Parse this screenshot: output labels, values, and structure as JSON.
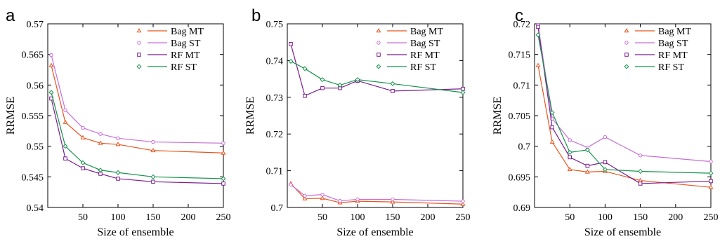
{
  "chart_data": [
    {
      "type": "line",
      "panel_label": "a",
      "xlabel": "Size of ensemble",
      "ylabel": "RRMSE",
      "xlim": [
        0,
        250
      ],
      "ylim": [
        0.54,
        0.57
      ],
      "xticks": [
        50,
        100,
        150,
        200,
        250
      ],
      "yticks": [
        "0.54",
        "0.545",
        "0.55",
        "0.555",
        "0.56",
        "0.565",
        "0.57"
      ],
      "legend_position": "top-right",
      "x": [
        5,
        25,
        50,
        75,
        100,
        150,
        250
      ],
      "series": [
        {
          "name": "Bag MT",
          "color": "#e8541c",
          "marker": "triangle",
          "values": [
            0.5632,
            0.5539,
            0.5514,
            0.5505,
            0.5503,
            0.5493,
            0.5489
          ]
        },
        {
          "name": "Bag ST",
          "color": "#c86dd7",
          "marker": "circle",
          "values": [
            0.5649,
            0.5559,
            0.553,
            0.552,
            0.5513,
            0.5507,
            0.5505
          ]
        },
        {
          "name": "RF MT",
          "color": "#7b1d8e",
          "marker": "square",
          "values": [
            0.5578,
            0.548,
            0.5464,
            0.5455,
            0.5447,
            0.5442,
            0.5439
          ]
        },
        {
          "name": "RF ST",
          "color": "#16924b",
          "marker": "diamond",
          "values": [
            0.5588,
            0.55,
            0.5473,
            0.5461,
            0.5457,
            0.545,
            0.5447
          ]
        }
      ]
    },
    {
      "type": "line",
      "panel_label": "b",
      "xlabel": "Size of ensemble",
      "ylabel": "RRMSE",
      "xlim": [
        0,
        250
      ],
      "ylim": [
        0.7,
        0.75
      ],
      "xticks": [
        50,
        100,
        150,
        200,
        250
      ],
      "yticks": [
        "0.7",
        "0.71",
        "0.72",
        "0.73",
        "0.74",
        "0.75"
      ],
      "legend_position": "top-right",
      "x": [
        5,
        25,
        50,
        75,
        100,
        150,
        250
      ],
      "series": [
        {
          "name": "Bag MT",
          "color": "#e8541c",
          "marker": "triangle",
          "values": [
            0.7065,
            0.7024,
            0.7025,
            0.7013,
            0.7017,
            0.7015,
            0.7009
          ]
        },
        {
          "name": "Bag ST",
          "color": "#c86dd7",
          "marker": "circle",
          "values": [
            0.7062,
            0.7032,
            0.7035,
            0.7018,
            0.7022,
            0.7022,
            0.7017
          ]
        },
        {
          "name": "RF MT",
          "color": "#7b1d8e",
          "marker": "square",
          "values": [
            0.7445,
            0.7304,
            0.7325,
            0.7325,
            0.7345,
            0.7317,
            0.7323
          ]
        },
        {
          "name": "RF ST",
          "color": "#16924b",
          "marker": "diamond",
          "values": [
            0.7398,
            0.7378,
            0.7348,
            0.7333,
            0.7348,
            0.7337,
            0.7313
          ]
        }
      ]
    },
    {
      "type": "line",
      "panel_label": "c",
      "xlabel": "Size of ensemble",
      "ylabel": "RRMSE",
      "xlim": [
        0,
        250
      ],
      "ylim": [
        0.69,
        0.72
      ],
      "xticks": [
        50,
        100,
        150,
        200,
        250
      ],
      "yticks": [
        "0.69",
        "0.695",
        "0.7",
        "0.705",
        "0.71",
        "0.715",
        "0.72"
      ],
      "legend_position": "top-right",
      "x": [
        5,
        25,
        50,
        75,
        100,
        150,
        250
      ],
      "series": [
        {
          "name": "Bag MT",
          "color": "#e8541c",
          "marker": "triangle",
          "values": [
            0.7132,
            0.7007,
            0.6962,
            0.6958,
            0.6959,
            0.6944,
            0.6933
          ]
        },
        {
          "name": "Bag ST",
          "color": "#c86dd7",
          "marker": "circle",
          "values": [
            0.7198,
            0.7045,
            0.701,
            0.6998,
            0.7015,
            0.6985,
            0.6975
          ]
        },
        {
          "name": "RF MT",
          "color": "#7b1d8e",
          "marker": "square",
          "values": [
            0.7195,
            0.7031,
            0.6982,
            0.6968,
            0.6974,
            0.6939,
            0.6943
          ]
        },
        {
          "name": "RF ST",
          "color": "#16924b",
          "marker": "diamond",
          "values": [
            0.7182,
            0.7055,
            0.699,
            0.6994,
            0.6962,
            0.6959,
            0.6956
          ]
        }
      ]
    }
  ]
}
